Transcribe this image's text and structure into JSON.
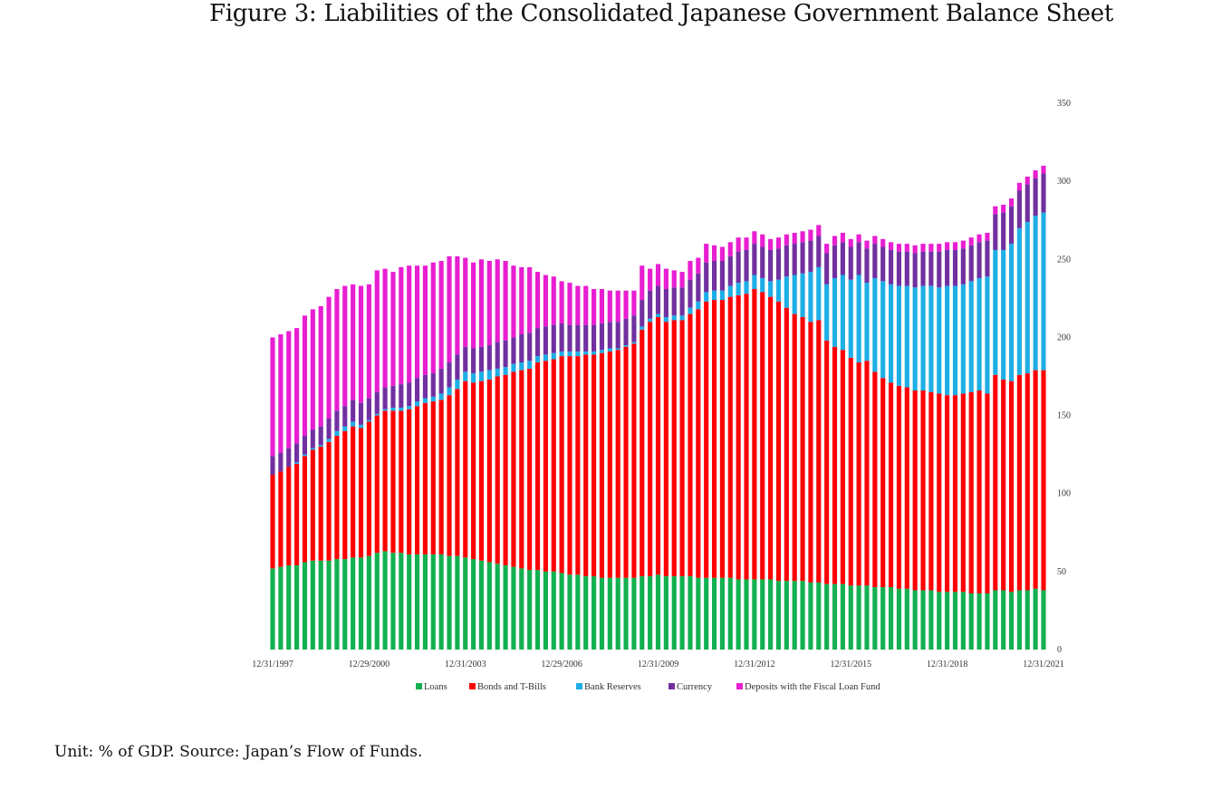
{
  "figure": {
    "title": "Figure 3: Liabilities of the Consolidated Japanese Government Balance Sheet",
    "caption": "Unit: % of GDP. Source: Japan’s Flow of Funds."
  },
  "chart_data": {
    "type": "bar",
    "stacked": true,
    "title": "Liabilities of the Consolidated Japanese Government Balance Sheet",
    "xlabel": "",
    "ylabel": "% of GDP",
    "ylim": [
      0,
      350
    ],
    "yticks": [
      0,
      50,
      100,
      150,
      200,
      250,
      300,
      350
    ],
    "y_axis_side": "right",
    "grid": false,
    "legend_position": "bottom",
    "frequency": "quarterly",
    "x_start": "1997Q4",
    "x_end": "2021Q4",
    "xtick_labels": [
      {
        "index": 0,
        "label": "12/31/1997"
      },
      {
        "index": 12,
        "label": "12/29/2000"
      },
      {
        "index": 24,
        "label": "12/31/2003"
      },
      {
        "index": 36,
        "label": "12/29/2006"
      },
      {
        "index": 48,
        "label": "12/31/2009"
      },
      {
        "index": 60,
        "label": "12/31/2012"
      },
      {
        "index": 72,
        "label": "12/31/2015"
      },
      {
        "index": 84,
        "label": "12/31/2018"
      },
      {
        "index": 96,
        "label": "12/31/2021"
      }
    ],
    "series": [
      {
        "name": "Loans",
        "color": "#12b050",
        "values": [
          52,
          53,
          54,
          54,
          56,
          57,
          57,
          57,
          58,
          58,
          59,
          59,
          60,
          62,
          63,
          62,
          62,
          61,
          61,
          61,
          61,
          61,
          60,
          60,
          59,
          58,
          57,
          56,
          55,
          54,
          53,
          52,
          51,
          51,
          50,
          50,
          49,
          48,
          48,
          47,
          47,
          46,
          46,
          46,
          46,
          46,
          47,
          47,
          48,
          47,
          47,
          47,
          47,
          46,
          46,
          46,
          46,
          46,
          45,
          45,
          45,
          45,
          45,
          44,
          44,
          44,
          44,
          43,
          43,
          42,
          42,
          42,
          41,
          41,
          41,
          40,
          40,
          40,
          39,
          39,
          38,
          38,
          38,
          37,
          37,
          37,
          37,
          36,
          36,
          36,
          38,
          38,
          37,
          38,
          38,
          39,
          38
        ]
      },
      {
        "name": "Bonds and T-Bills",
        "color": "#ff0000",
        "values": [
          60,
          61,
          63,
          65,
          68,
          71,
          73,
          76,
          79,
          82,
          84,
          83,
          86,
          88,
          90,
          91,
          91,
          93,
          95,
          97,
          98,
          99,
          103,
          107,
          113,
          113,
          115,
          117,
          120,
          122,
          125,
          127,
          129,
          133,
          135,
          136,
          139,
          140,
          140,
          142,
          142,
          144,
          145,
          146,
          148,
          150,
          158,
          163,
          165,
          163,
          164,
          164,
          168,
          172,
          177,
          178,
          178,
          180,
          182,
          183,
          186,
          184,
          181,
          179,
          175,
          171,
          169,
          167,
          168,
          156,
          152,
          150,
          146,
          143,
          144,
          138,
          134,
          131,
          130,
          129,
          128,
          128,
          127,
          127,
          126,
          126,
          127,
          129,
          130,
          128,
          138,
          135,
          135,
          138,
          139,
          140,
          141
        ]
      },
      {
        "name": "Bank Reserves",
        "color": "#1eaee6",
        "values": [
          0,
          0,
          0,
          1,
          1,
          1,
          1,
          2,
          3,
          3,
          3,
          2,
          1,
          1,
          1,
          2,
          2,
          2,
          3,
          3,
          3,
          4,
          5,
          6,
          6,
          6,
          6,
          6,
          5,
          5,
          5,
          5,
          5,
          4,
          4,
          4,
          3,
          3,
          3,
          2,
          2,
          2,
          2,
          1,
          1,
          1,
          2,
          2,
          2,
          3,
          3,
          3,
          4,
          5,
          6,
          6,
          6,
          7,
          8,
          8,
          9,
          9,
          10,
          14,
          20,
          25,
          28,
          32,
          34,
          36,
          44,
          48,
          50,
          56,
          50,
          60,
          62,
          63,
          64,
          65,
          66,
          67,
          68,
          68,
          70,
          70,
          70,
          71,
          72,
          75,
          80,
          83,
          88,
          94,
          97,
          99,
          101
        ]
      },
      {
        "name": "Currency",
        "color": "#7030a0",
        "values": [
          12,
          12,
          12,
          12,
          12,
          12,
          12,
          13,
          13,
          13,
          14,
          14,
          14,
          14,
          14,
          14,
          15,
          15,
          15,
          15,
          15,
          16,
          16,
          16,
          16,
          16,
          16,
          16,
          17,
          17,
          17,
          18,
          18,
          18,
          18,
          18,
          18,
          17,
          17,
          17,
          17,
          17,
          17,
          17,
          17,
          17,
          17,
          18,
          18,
          18,
          18,
          18,
          18,
          18,
          19,
          19,
          19,
          19,
          20,
          20,
          20,
          20,
          20,
          20,
          20,
          20,
          20,
          20,
          20,
          20,
          21,
          21,
          21,
          21,
          22,
          22,
          22,
          22,
          22,
          22,
          22,
          22,
          22,
          23,
          23,
          23,
          23,
          23,
          23,
          23,
          23,
          24,
          24,
          24,
          24,
          24,
          25
        ]
      },
      {
        "name": "Deposits with the Fiscal Loan Fund",
        "color": "#e81ed2",
        "values": [
          76,
          76,
          75,
          74,
          77,
          77,
          77,
          78,
          78,
          77,
          74,
          75,
          73,
          78,
          76,
          73,
          75,
          75,
          72,
          70,
          71,
          69,
          68,
          63,
          57,
          55,
          56,
          54,
          53,
          51,
          46,
          43,
          42,
          36,
          33,
          31,
          27,
          27,
          25,
          25,
          23,
          22,
          20,
          20,
          18,
          16,
          22,
          14,
          14,
          13,
          11,
          10,
          12,
          10,
          12,
          10,
          9,
          9,
          9,
          8,
          8,
          8,
          7,
          7,
          7,
          7,
          7,
          7,
          7,
          6,
          6,
          6,
          5,
          5,
          5,
          5,
          5,
          5,
          5,
          5,
          5,
          5,
          5,
          5,
          5,
          5,
          5,
          5,
          5,
          5,
          5,
          5,
          5,
          5,
          5,
          5,
          5
        ]
      }
    ]
  },
  "legend": [
    {
      "label": "Loans",
      "color": "#12b050"
    },
    {
      "label": "Bonds and T-Bills",
      "color": "#ff0000"
    },
    {
      "label": "Bank Reserves",
      "color": "#1eaee6"
    },
    {
      "label": "Currency",
      "color": "#7030a0"
    },
    {
      "label": "Deposits with the Fiscal Loan Fund",
      "color": "#e81ed2"
    }
  ]
}
